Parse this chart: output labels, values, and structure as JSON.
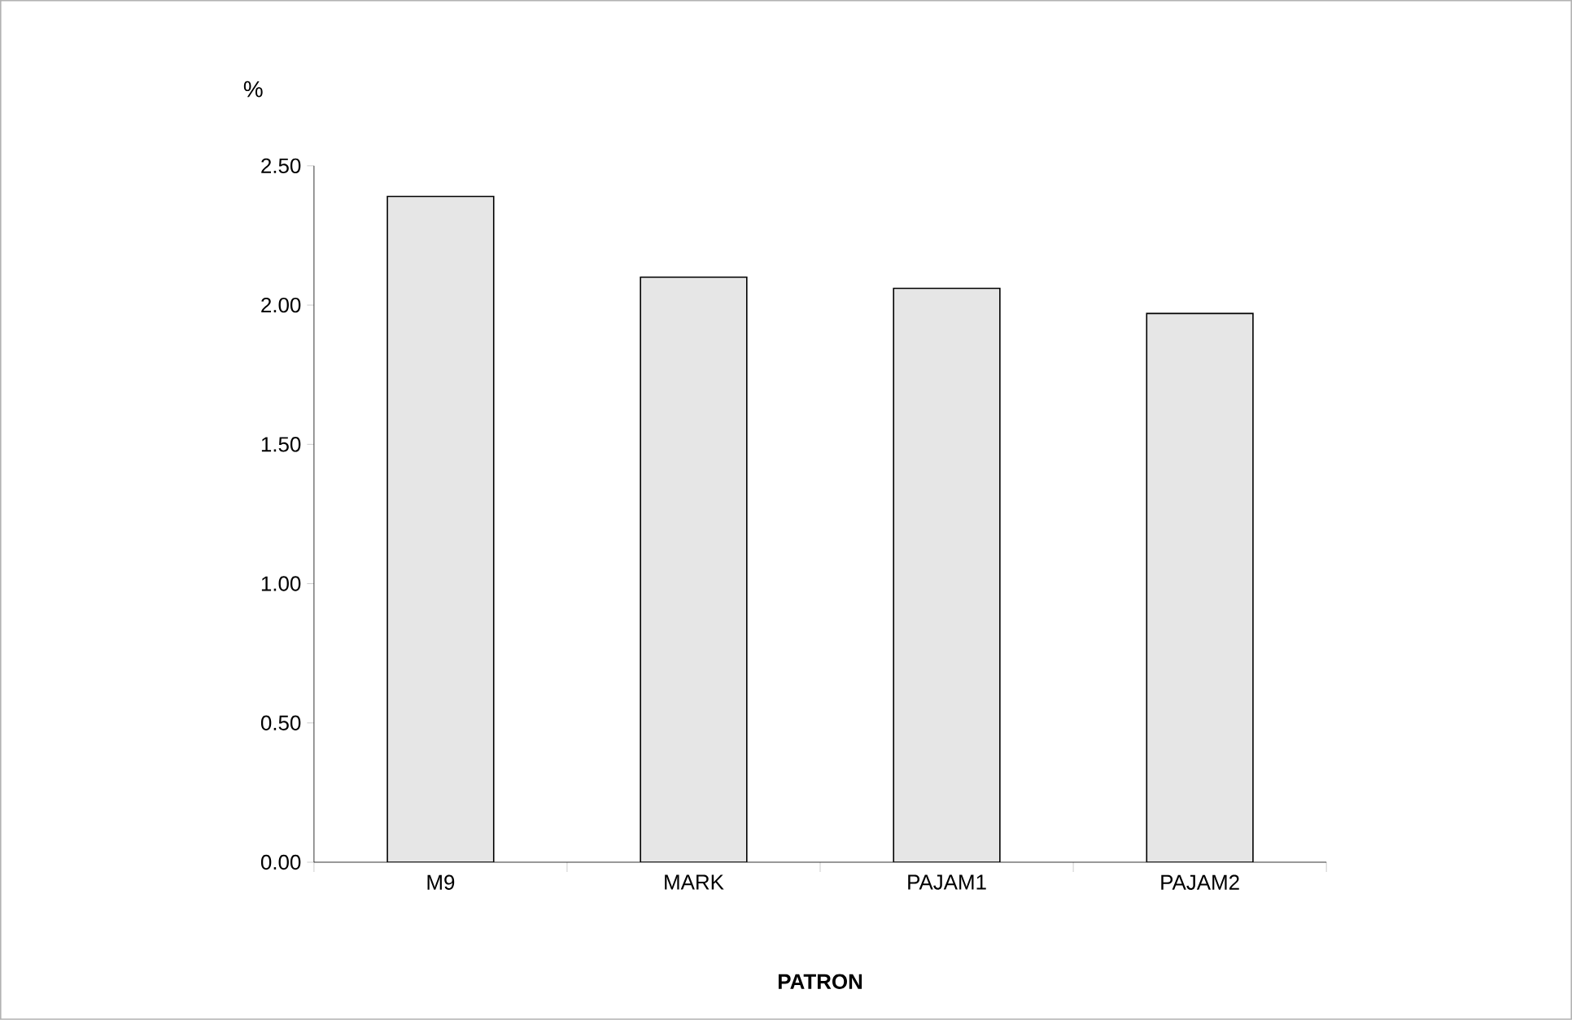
{
  "chart_data": {
    "type": "bar",
    "xlabel": "PATRON",
    "ylabel": "%",
    "categories": [
      "M9",
      "MARK",
      "PAJAM1",
      "PAJAM2"
    ],
    "values": [
      2.39,
      2.1,
      2.06,
      1.97
    ],
    "color": "#e6e6e6",
    "ylim": [
      0,
      2.5
    ],
    "yticks": [
      {
        "value": 0,
        "label": "0.00"
      },
      {
        "value": 0.5,
        "label": "0.50"
      },
      {
        "value": 1,
        "label": "1.00"
      },
      {
        "value": 1.5,
        "label": "1.50"
      },
      {
        "value": 2,
        "label": "2.00"
      },
      {
        "value": 2.5,
        "label": "2.50"
      }
    ],
    "grid": false
  }
}
